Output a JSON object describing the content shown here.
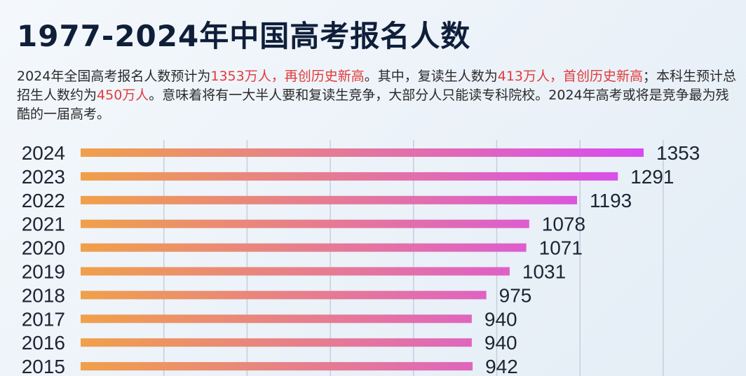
{
  "header": {
    "title": "1977-2024年中国高考报名人数"
  },
  "description": {
    "parts": [
      {
        "text": "2024年全国高考报名人数预计为",
        "highlight": false
      },
      {
        "text": "1353万人，再创历史新高",
        "highlight": true
      },
      {
        "text": "。其中，复读生人数为",
        "highlight": false
      },
      {
        "text": "413万人，首创历史新高",
        "highlight": true
      },
      {
        "text": "；本科生预计总招生人数约为",
        "highlight": false
      },
      {
        "text": "450万人",
        "highlight": true
      },
      {
        "text": "。意味着将有一大半人要和复读生竞争，大部分人只能读专科院校。2024年高考或将是竞争最为残酷的一届高考。",
        "highlight": false
      }
    ]
  },
  "colors": {
    "bar_start": "#f0a04a",
    "bar_end": "#d84cf0",
    "highlight": "#e23a3a",
    "gridline": "#c5cfdb"
  },
  "chart_data": {
    "type": "bar",
    "orientation": "horizontal",
    "title": "1977-2024年中国高考报名人数",
    "unit": "万人",
    "categories": [
      "2024",
      "2023",
      "2022",
      "2021",
      "2020",
      "2019",
      "2018",
      "2017",
      "2016",
      "2015"
    ],
    "values": [
      1353,
      1291,
      1193,
      1078,
      1071,
      1031,
      975,
      940,
      940,
      942
    ],
    "xlim": [
      0,
      1400
    ],
    "grid": true
  }
}
